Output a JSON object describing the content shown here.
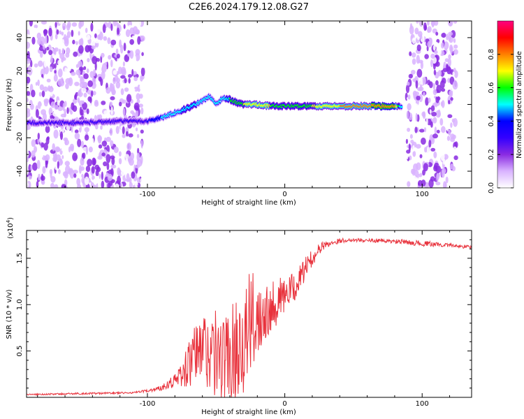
{
  "chart_data": [
    {
      "type": "heatmap",
      "title": "C2E6.2024.179.12.08.G27",
      "xlabel": "Height of straight line (km)",
      "ylabel": "Frequency (Hz)",
      "xlim": [
        -188,
        136
      ],
      "ylim": [
        -50,
        50
      ],
      "x_ticks": [
        -100,
        0,
        100
      ],
      "x_tick_labels": [
        "-100",
        "0",
        "100"
      ],
      "y_ticks": [
        -40,
        -20,
        0,
        20,
        40
      ],
      "y_tick_labels": [
        "-40",
        "-20",
        "0",
        "20",
        "40"
      ],
      "colorbar": {
        "label": "Normalized spectral amplitude",
        "range": [
          0.0,
          1.0
        ],
        "ticks": [
          0.0,
          0.2,
          0.4,
          0.6,
          0.8
        ],
        "tick_labels": [
          "0.0",
          "0.2",
          "0.4",
          "0.6",
          "0.8"
        ],
        "colors": [
          "#ffffff",
          "#d9b3ff",
          "#8a2be2",
          "#3300ff",
          "#0000ff",
          "#00ffff",
          "#00ff00",
          "#ffff00",
          "#ff8000",
          "#ff0000",
          "#ff0080"
        ]
      },
      "ridge": {
        "x": [
          -188,
          -150,
          -120,
          -100,
          -90,
          -80,
          -70,
          -60,
          -55,
          -50,
          -45,
          -40,
          -35,
          -30,
          -25,
          -20,
          -10,
          0,
          20,
          40,
          60,
          80,
          85
        ],
        "freq": [
          -11,
          -11,
          -10,
          -10,
          -8,
          -5,
          -2,
          2,
          5,
          0,
          4,
          3,
          1,
          0,
          0,
          0,
          -1,
          -1,
          -1,
          -1,
          -1,
          -1,
          -1
        ],
        "amplitude": [
          0.35,
          0.4,
          0.35,
          0.4,
          0.5,
          0.55,
          0.6,
          0.55,
          0.5,
          0.5,
          0.55,
          0.6,
          0.65,
          0.7,
          0.75,
          0.8,
          0.7,
          0.65,
          0.7,
          0.8,
          0.85,
          0.9,
          0.5
        ]
      },
      "noise_regions": [
        {
          "x_range": [
            -188,
            -103
          ],
          "amplitude": "low"
        },
        {
          "x_range": [
            -98,
            -86
          ],
          "amplitude": "very low"
        },
        {
          "x_range": [
            88,
            125
          ],
          "amplitude": "low"
        }
      ]
    },
    {
      "type": "line",
      "title": "",
      "xlabel": "Height of straight line (km)",
      "ylabel": "SNR (10 * v/v)",
      "scale_label": "(x10",
      "scale_exponent": "4",
      "scale_suffix": ")",
      "xlim": [
        -188,
        136
      ],
      "ylim": [
        0,
        18000
      ],
      "x_ticks": [
        -100,
        0,
        100
      ],
      "x_tick_labels": [
        "-100",
        "0",
        "100"
      ],
      "y_ticks": [
        5000,
        10000,
        15000
      ],
      "y_tick_labels": [
        "0.5",
        "1.0",
        "1.5"
      ],
      "series": [
        {
          "name": "SNR",
          "color": "#e8323c",
          "x": [
            -188,
            -150,
            -110,
            -100,
            -90,
            -85,
            -80,
            -75,
            -70,
            -65,
            -60,
            -55,
            -50,
            -45,
            -40,
            -35,
            -30,
            -25,
            -20,
            -15,
            -10,
            -5,
            0,
            5,
            10,
            15,
            20,
            25,
            30,
            40,
            50,
            60,
            70,
            80,
            85,
            90,
            100,
            110,
            120,
            136
          ],
          "y": [
            300,
            400,
            500,
            700,
            1000,
            1500,
            1800,
            2500,
            3500,
            4500,
            5500,
            5000,
            4500,
            4000,
            4500,
            5500,
            6500,
            7500,
            9000,
            9500,
            10000,
            10500,
            11000,
            11500,
            12500,
            14000,
            15000,
            16000,
            16500,
            16900,
            17000,
            16900,
            16900,
            16800,
            16800,
            16700,
            16600,
            16500,
            16400,
            16200
          ],
          "variability": [
            80,
            100,
            100,
            150,
            300,
            500,
            800,
            1500,
            2500,
            3500,
            4000,
            4500,
            5000,
            5000,
            5000,
            5500,
            6000,
            6000,
            4500,
            3500,
            3000,
            2500,
            2000,
            1800,
            1500,
            1200,
            900,
            600,
            400,
            250,
            200,
            200,
            200,
            250,
            250,
            250,
            300,
            250,
            200,
            200
          ]
        }
      ]
    }
  ]
}
